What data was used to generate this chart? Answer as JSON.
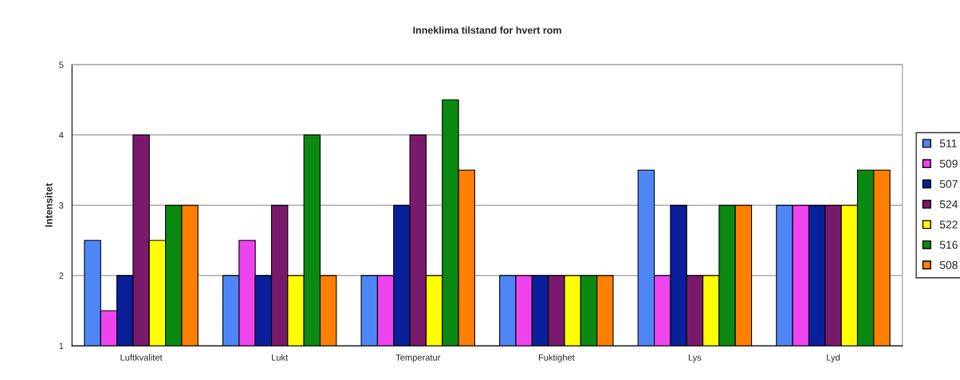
{
  "chart_data": {
    "type": "bar",
    "title": "Inneklima tilstand for hvert rom",
    "ylabel": "Intensitet",
    "categories": [
      "Luftkvalitet",
      "Lukt",
      "Temperatur",
      "Fuktighet",
      "Lys",
      "Lyd"
    ],
    "series": [
      {
        "name": "511",
        "color": "#4f86f7",
        "values": [
          2.5,
          2,
          2,
          2,
          3.5,
          3
        ]
      },
      {
        "name": "509",
        "color": "#ee44ee",
        "values": [
          1.5,
          2.5,
          2,
          2,
          2,
          3
        ]
      },
      {
        "name": "507",
        "color": "#0a1f9a",
        "values": [
          2,
          2,
          3,
          2,
          3,
          3
        ]
      },
      {
        "name": "524",
        "color": "#7a1a6c",
        "values": [
          4,
          3,
          4,
          2,
          2,
          3
        ]
      },
      {
        "name": "522",
        "color": "#ffff00",
        "values": [
          2.5,
          2,
          2,
          2,
          2,
          3
        ]
      },
      {
        "name": "516",
        "color": "#0a8a10",
        "values": [
          3,
          4,
          4.5,
          2,
          3,
          3.5
        ]
      },
      {
        "name": "508",
        "color": "#ff7f00",
        "values": [
          3,
          2,
          3.5,
          2,
          3,
          3.5
        ]
      }
    ],
    "ylim": [
      1,
      5
    ],
    "yticks": [
      1,
      2,
      3,
      4,
      5
    ],
    "grid": "y",
    "legend": "right"
  }
}
